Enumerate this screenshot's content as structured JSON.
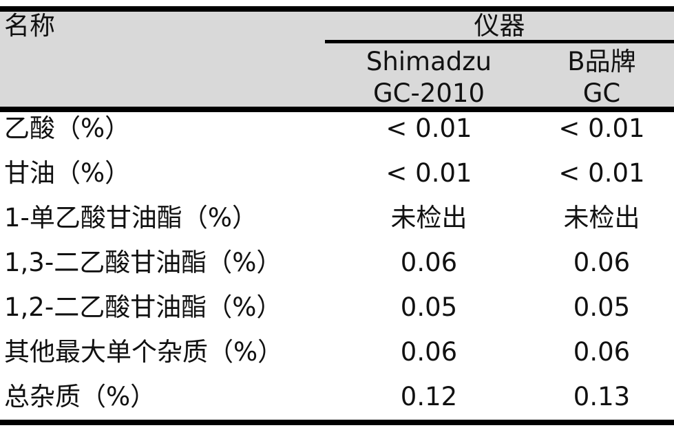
{
  "table": {
    "name_header": "名称",
    "group_header": "仪器",
    "col2_line1": "Shimadzu",
    "col2_line2": "GC-2010",
    "col3_line1": "B品牌",
    "col3_line2": "GC",
    "rows": [
      {
        "name": "乙酸（%）",
        "v1": "< 0.01",
        "v2": "< 0.01"
      },
      {
        "name": "甘油（%）",
        "v1": "< 0.01",
        "v2": "< 0.01"
      },
      {
        "name": "1-单乙酸甘油酯（%）",
        "v1": "未检出",
        "v2": "未检出"
      },
      {
        "name": "1,3-二乙酸甘油酯（%）",
        "v1": "0.06",
        "v2": "0.06"
      },
      {
        "name": "1,2-二乙酸甘油酯（%）",
        "v1": "0.05",
        "v2": "0.05"
      },
      {
        "name": "其他最大单个杂质（%）",
        "v1": "0.06",
        "v2": "0.06"
      },
      {
        "name": "总杂质（%）",
        "v1": "0.12",
        "v2": "0.13"
      }
    ]
  }
}
